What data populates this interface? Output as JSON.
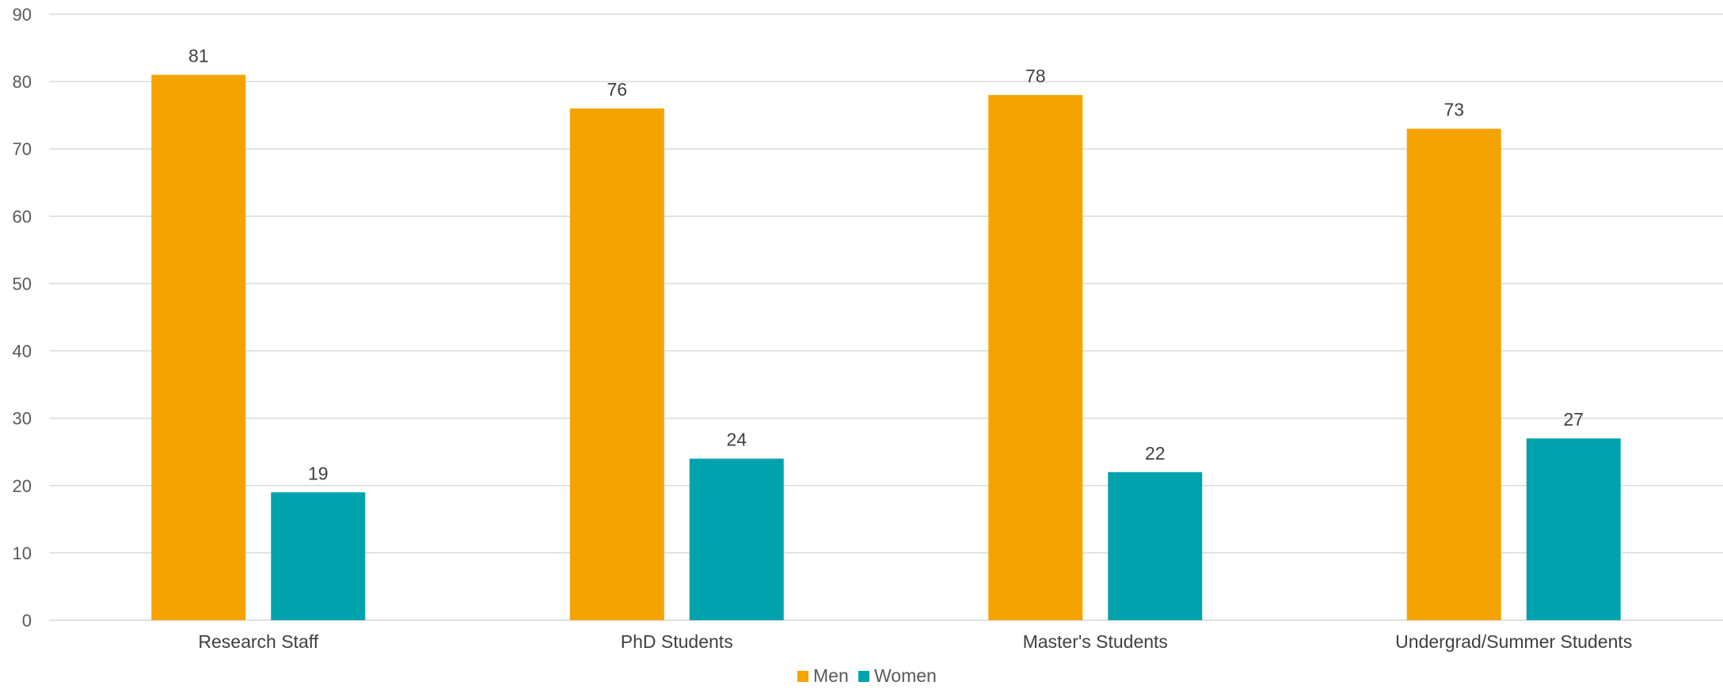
{
  "chart_data": {
    "type": "bar",
    "categories": [
      "Research Staff",
      "PhD Students",
      "Master's Students",
      "Undergrad/Summer Students"
    ],
    "series": [
      {
        "name": "Men",
        "values": [
          81,
          76,
          78,
          73
        ],
        "color": "#F4A300"
      },
      {
        "name": "Women",
        "values": [
          19,
          24,
          22,
          27
        ],
        "color": "#00A3AD"
      }
    ],
    "ylim": [
      0,
      90
    ],
    "yticks": [
      0,
      10,
      20,
      30,
      40,
      50,
      60,
      70,
      80,
      90
    ],
    "grid": true,
    "legend": "bottom-center",
    "title": "",
    "xlabel": "",
    "ylabel": ""
  }
}
